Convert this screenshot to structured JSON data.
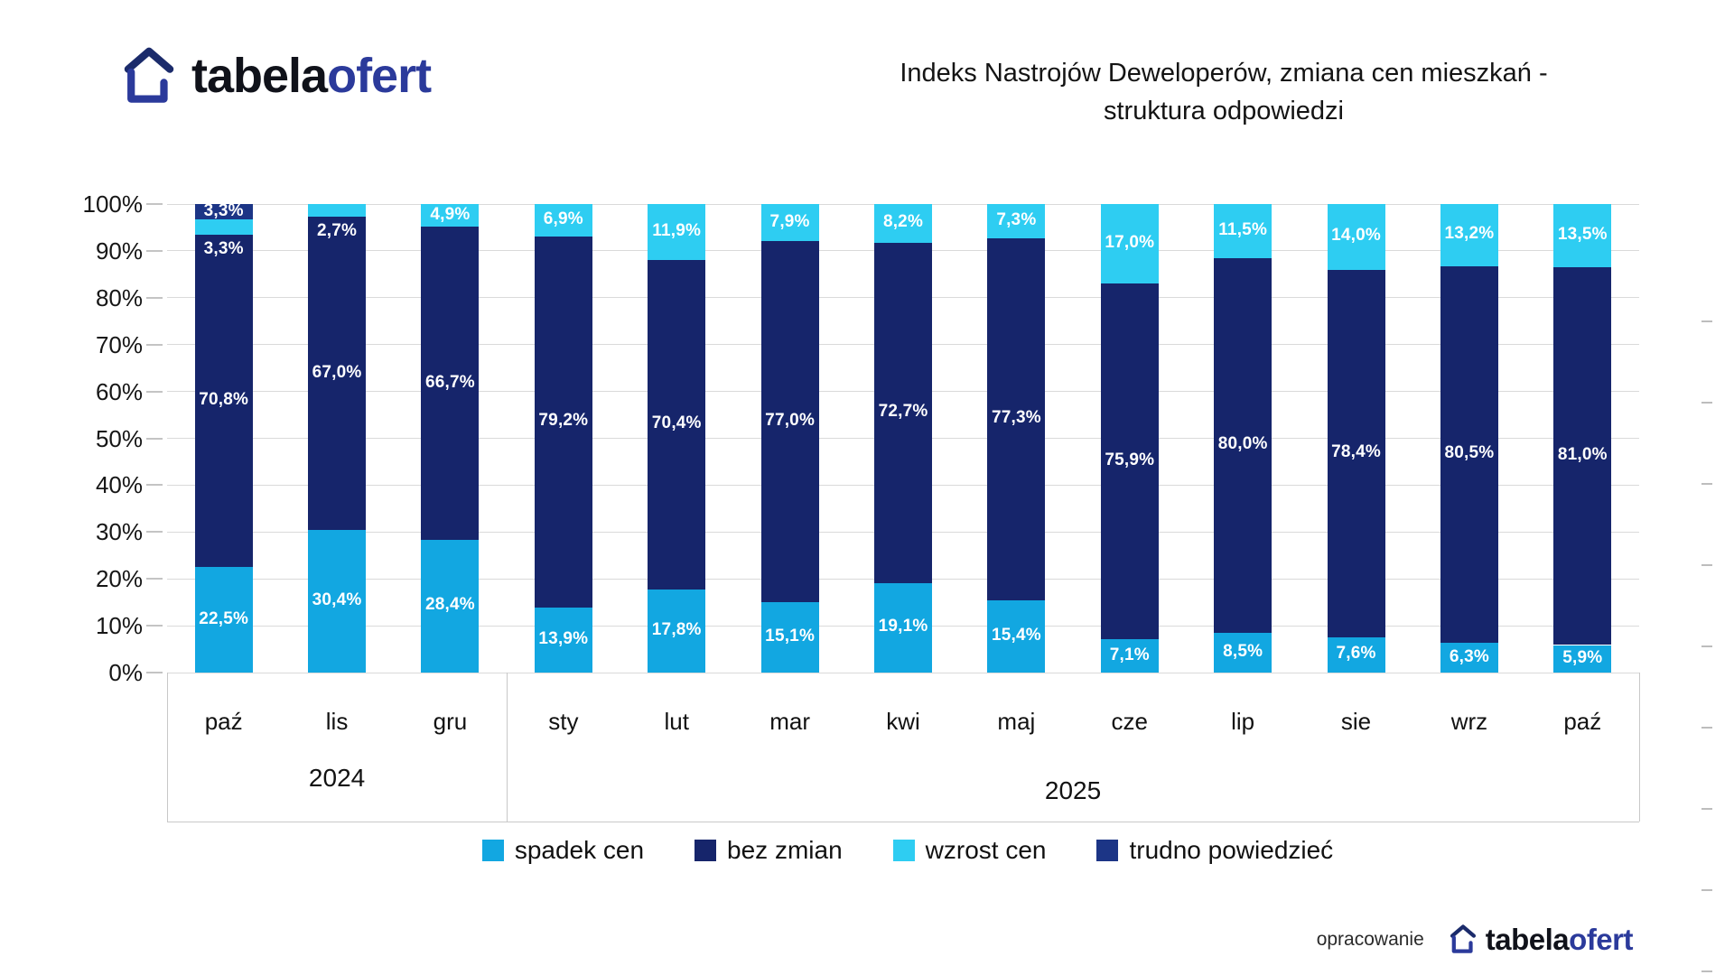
{
  "logo": {
    "text_black": "tabela",
    "text_blue": "ofert"
  },
  "header": {
    "line1": "Indeks Nastrojów Deweloperów, zmiana cen mieszkań -",
    "line2": "struktura odpowiedzi"
  },
  "footer": {
    "credit": "opracowanie",
    "logo_black": "tabela",
    "logo_blue": "ofert"
  },
  "colors": {
    "spadek_cen": "#12a7e1",
    "bez_zmian": "#16256b",
    "wzrost_cen": "#2ecdf2",
    "trudno_powiedziec": "#1c3586",
    "logo_blue": "#2b3a9b",
    "logo_roof": "#1b2b6b",
    "gridline": "#dadada"
  },
  "chart_data": {
    "type": "bar",
    "stacked": true,
    "title": "Indeks Nastrojów Deweloperów, zmiana cen mieszkań - struktura odpowiedzi",
    "categories": [
      "paź",
      "lis",
      "gru",
      "sty",
      "lut",
      "mar",
      "kwi",
      "maj",
      "cze",
      "lip",
      "sie",
      "wrz",
      "paź"
    ],
    "year_groups": [
      {
        "label": "2024",
        "span": 3
      },
      {
        "label": "2025",
        "span": 10
      }
    ],
    "series": [
      {
        "name": "spadek cen",
        "color": "#12a7e1",
        "values": [
          22.5,
          30.4,
          28.4,
          13.9,
          17.8,
          15.1,
          19.1,
          15.4,
          7.1,
          8.5,
          7.6,
          6.3,
          5.9
        ]
      },
      {
        "name": "bez zmian",
        "color": "#16256b",
        "values": [
          70.8,
          67.0,
          66.7,
          79.2,
          70.4,
          77.0,
          72.7,
          77.3,
          75.9,
          80.0,
          78.4,
          80.5,
          81.0
        ]
      },
      {
        "name": "wzrost cen",
        "color": "#2ecdf2",
        "values": [
          3.3,
          2.7,
          4.9,
          6.9,
          11.9,
          7.9,
          8.2,
          7.3,
          17.0,
          11.5,
          14.0,
          13.2,
          13.5
        ]
      },
      {
        "name": "trudno powiedzieć",
        "color": "#1c3586",
        "values": [
          3.3,
          0,
          0,
          0,
          0,
          0,
          0,
          0,
          0,
          0,
          0,
          0,
          0
        ]
      }
    ],
    "y_ticks": [
      "100%",
      "90%",
      "80%",
      "70%",
      "60%",
      "50%",
      "40%",
      "30%",
      "20%",
      "10%",
      "0%"
    ],
    "ylim": [
      0,
      100
    ],
    "value_suffix": "%",
    "decimal_separator": ",",
    "grid": true,
    "legend_position": "bottom"
  }
}
